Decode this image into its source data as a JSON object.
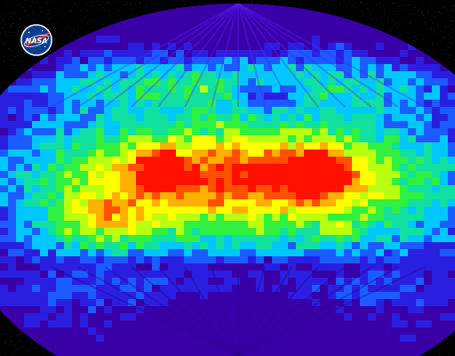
{
  "image": {
    "subject": "all-sky map",
    "colormap": [
      "#3a00a8",
      "#2a1fe0",
      "#1a5cff",
      "#00c8ff",
      "#10e0a0",
      "#30f040",
      "#b8ff10",
      "#ffff00",
      "#ffb000",
      "#ff5000",
      "#ff1000"
    ]
  },
  "logo": {
    "text": "NASA",
    "icon": "nasa-meatball-logo-icon",
    "circle_color": "#0b3d91",
    "chevron_color": "#fc3d21",
    "text_color": "#ffffff"
  }
}
